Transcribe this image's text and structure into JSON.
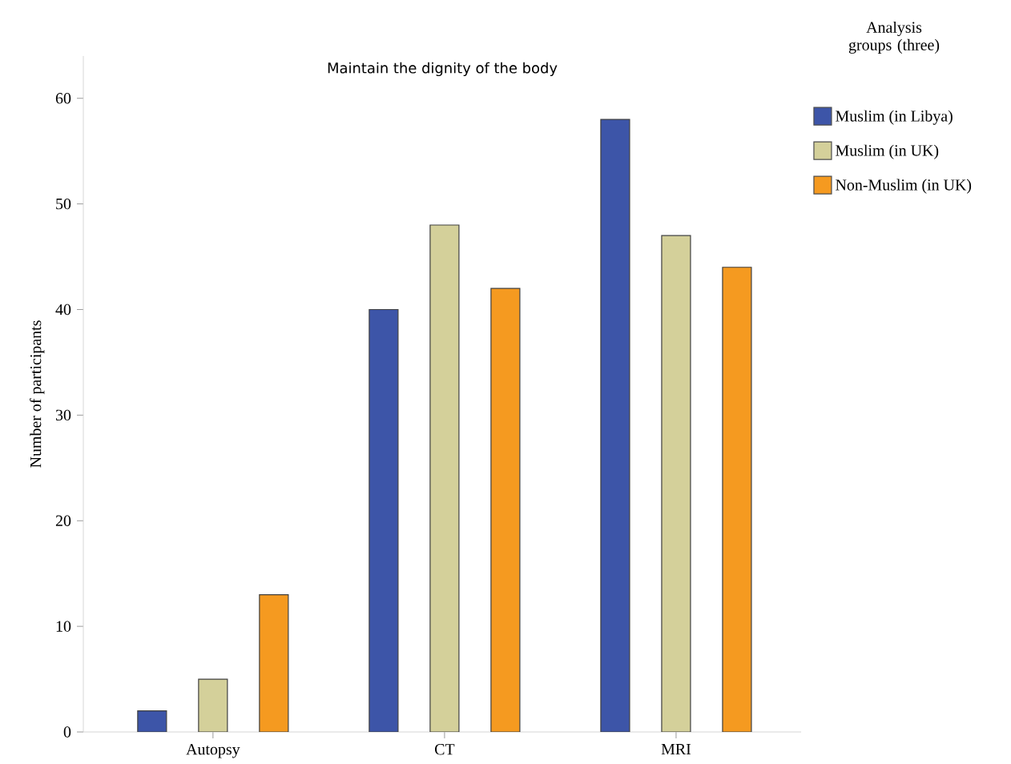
{
  "chart_data": {
    "type": "bar",
    "title": "Maintain the dignity of the body",
    "ylabel": "Number of participants",
    "legend_title": "Analysis groups (three)",
    "categories": [
      "Autopsy",
      "CT",
      "MRI"
    ],
    "series": [
      {
        "name": "Muslim (in Libya)",
        "color": "#3d55a8",
        "values": [
          2,
          40,
          58
        ]
      },
      {
        "name": "Muslim (in UK)",
        "color": "#d4d09a",
        "values": [
          5,
          48,
          47
        ]
      },
      {
        "name": "Non-Muslim (in UK)",
        "color": "#f59a20",
        "values": [
          13,
          42,
          44
        ]
      }
    ],
    "ylim": [
      0,
      64
    ],
    "yticks": [
      0,
      10,
      20,
      30,
      40,
      50,
      60
    ],
    "legend": "right",
    "grid": false
  }
}
